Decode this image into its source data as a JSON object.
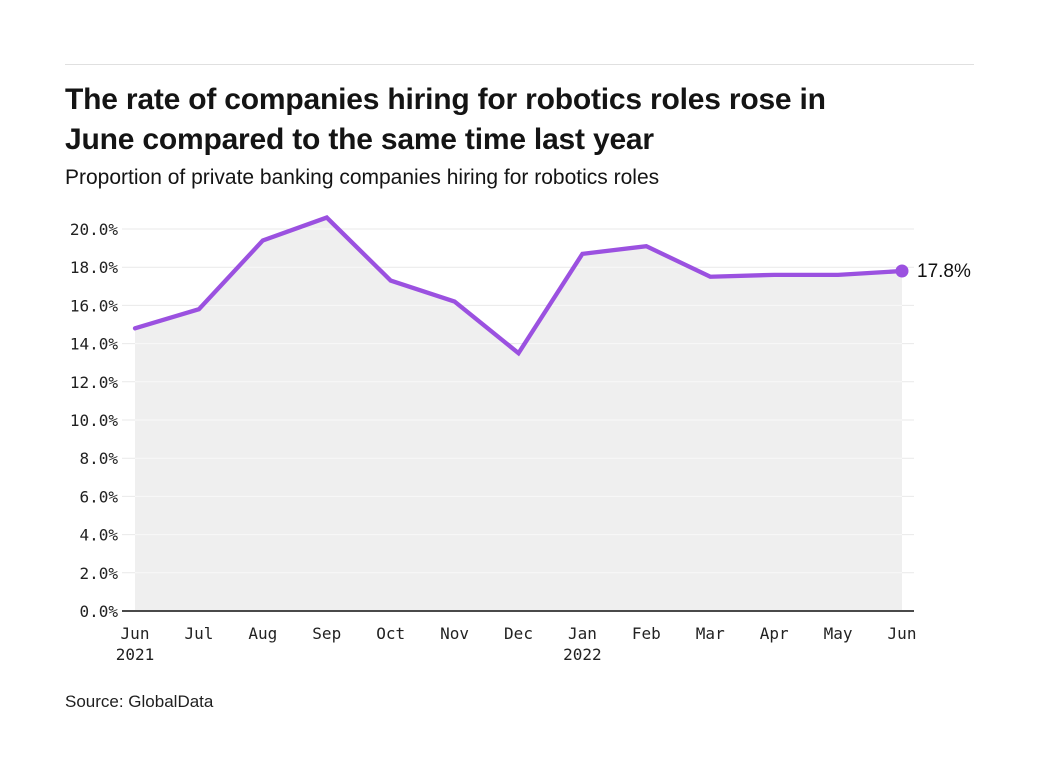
{
  "header": {
    "title_line1": "The rate of companies hiring for robotics roles rose in",
    "title_line2": "June compared to the same time last year",
    "subtitle": "Proportion of private banking companies hiring for robotics roles"
  },
  "chart_data": {
    "type": "area",
    "title": "Proportion of private banking companies hiring for robotics roles",
    "x_categories": [
      {
        "label": "Jun",
        "sublabel": "2021"
      },
      {
        "label": "Jul"
      },
      {
        "label": "Aug"
      },
      {
        "label": "Sep"
      },
      {
        "label": "Oct"
      },
      {
        "label": "Nov"
      },
      {
        "label": "Dec"
      },
      {
        "label": "Jan",
        "sublabel": "2022"
      },
      {
        "label": "Feb"
      },
      {
        "label": "Mar"
      },
      {
        "label": "Apr"
      },
      {
        "label": "May"
      },
      {
        "label": "Jun"
      }
    ],
    "values": [
      14.8,
      15.8,
      19.4,
      20.6,
      17.3,
      16.2,
      13.5,
      18.7,
      19.1,
      17.5,
      17.6,
      17.6,
      17.8
    ],
    "unit": "%",
    "y_ticks": [
      "0.0%",
      "2.0%",
      "4.0%",
      "6.0%",
      "8.0%",
      "10.0%",
      "12.0%",
      "14.0%",
      "16.0%",
      "18.0%",
      "20.0%"
    ],
    "y_tick_values": [
      0,
      2,
      4,
      6,
      8,
      10,
      12,
      14,
      16,
      18,
      20
    ],
    "ylim": [
      0,
      21
    ],
    "grid": true,
    "legend": "none",
    "end_label": "17.8%",
    "colors": {
      "line": "#9b51e0",
      "marker": "#9b51e0",
      "area": "#efefef",
      "grid": "#e9e9e9",
      "grid_on_area": "#f8f8f8",
      "axis": "#4a4a4a",
      "text": "#222222",
      "end_label_text": "#111111"
    }
  },
  "footer": {
    "source": "Source: GlobalData"
  }
}
